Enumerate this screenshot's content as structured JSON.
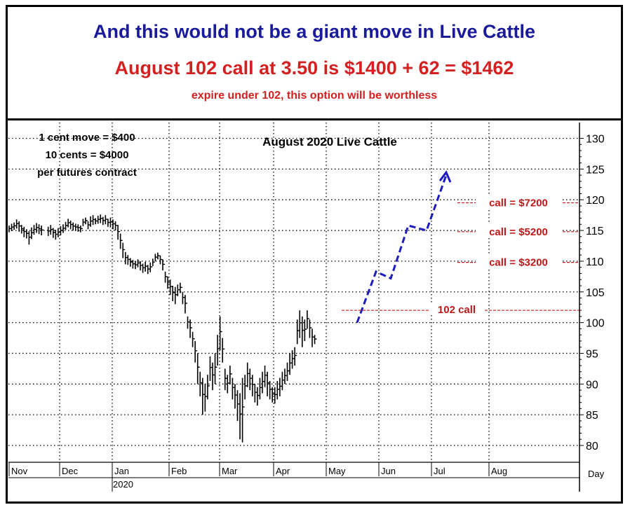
{
  "header": {
    "line1": "And this would not  be a giant move in Live Cattle",
    "line2": "August 102 call at 3.50 is $1400 + 62 = $1462",
    "line3": "expire under 102, this option will be worthless"
  },
  "colors": {
    "headline_blue": "#1a1a9c",
    "headline_red": "#d42020",
    "annotation_red": "#c01818",
    "projection_blue": "#1c1cc0",
    "bars": "#000000"
  },
  "notes": {
    "line1": "1 cent move = $400",
    "line2": "10 cents = $4000",
    "line3": "per futures contract"
  },
  "chart_data": {
    "type": "bar",
    "subtype": "ohlc",
    "title": "August 2020 Live Cattle",
    "xlabel": "Day",
    "x_ticks": [
      "Nov",
      "Dec",
      "Jan",
      "Feb",
      "Mar",
      "Apr",
      "May",
      "Jun",
      "Jul",
      "Aug"
    ],
    "x_sublabel": "2020",
    "y_ticks": [
      80,
      85,
      90,
      95,
      100,
      105,
      110,
      115,
      120,
      125,
      130
    ],
    "ylim": [
      78,
      132
    ],
    "grid": true,
    "y_axis_position": "right",
    "series": [
      {
        "values": [
          [
            115.8,
            114.7
          ],
          [
            116.1,
            114.9
          ],
          [
            116.3,
            115.1
          ],
          [
            116.8,
            115.3
          ],
          [
            116.5,
            114.8
          ],
          [
            115.9,
            114.5
          ],
          [
            115.6,
            113.9
          ],
          [
            115.2,
            113.7
          ],
          [
            114.9,
            112.7
          ],
          [
            115.5,
            113.6
          ],
          [
            115.9,
            114.3
          ],
          [
            116.2,
            114.6
          ],
          [
            116.0,
            114.4
          ],
          [
            115.8,
            114.2
          ],
          [
            115.6,
            114.1
          ],
          [
            115.9,
            114.3
          ],
          [
            115.4,
            113.8
          ],
          [
            115.1,
            113.5
          ],
          [
            115.4,
            113.9
          ],
          [
            115.7,
            114.2
          ],
          [
            116.0,
            114.6
          ],
          [
            116.4,
            115.1
          ],
          [
            116.9,
            115.5
          ],
          [
            116.6,
            115.2
          ],
          [
            116.3,
            115.0
          ],
          [
            116.1,
            114.9
          ],
          [
            116.0,
            114.8
          ],
          [
            115.8,
            114.7
          ],
          [
            116.9,
            115.7
          ],
          [
            117.1,
            116.0
          ],
          [
            116.5,
            115.2
          ],
          [
            117.3,
            115.6
          ],
          [
            117.5,
            115.9
          ],
          [
            117.0,
            116.0
          ],
          [
            117.4,
            116.1
          ],
          [
            117.6,
            116.2
          ],
          [
            117.2,
            115.9
          ],
          [
            117.5,
            116.0
          ],
          [
            116.9,
            115.6
          ],
          [
            117.1,
            115.5
          ],
          [
            116.8,
            115.2
          ],
          [
            116.5,
            115.0
          ],
          [
            115.9,
            113.5
          ],
          [
            114.5,
            112.0
          ],
          [
            113.0,
            110.5
          ],
          [
            111.5,
            109.5
          ],
          [
            111.0,
            109.4
          ],
          [
            110.5,
            109.1
          ],
          [
            110.2,
            108.8
          ],
          [
            110.0,
            108.7
          ],
          [
            110.3,
            109.0
          ],
          [
            110.0,
            108.5
          ],
          [
            109.6,
            108.1
          ],
          [
            109.9,
            108.3
          ],
          [
            109.4,
            107.9
          ],
          [
            109.8,
            108.2
          ],
          [
            110.4,
            109.2
          ],
          [
            111.2,
            110.0
          ],
          [
            111.4,
            110.3
          ],
          [
            110.9,
            109.5
          ],
          [
            110.3,
            108.5
          ],
          [
            108.3,
            106.5
          ],
          [
            107.5,
            105.5
          ],
          [
            107.0,
            104.5
          ],
          [
            106.0,
            103.5
          ],
          [
            105.8,
            103.0
          ],
          [
            106.2,
            104.3
          ],
          [
            106.5,
            104.8
          ],
          [
            105.0,
            103.0
          ],
          [
            104.5,
            101.5
          ],
          [
            101.0,
            99.0
          ],
          [
            100.5,
            97.5
          ],
          [
            98.5,
            96.0
          ],
          [
            97.0,
            93.5
          ],
          [
            95.0,
            90.0
          ],
          [
            92.0,
            88.0
          ],
          [
            91.0,
            85.0
          ],
          [
            90.0,
            85.5
          ],
          [
            91.5,
            87.5
          ],
          [
            94.5,
            90.5
          ],
          [
            93.5,
            89.0
          ],
          [
            95.0,
            90.0
          ],
          [
            98.0,
            93.0
          ],
          [
            101.0,
            95.5
          ],
          [
            97.5,
            93.5
          ],
          [
            92.5,
            89.0
          ],
          [
            91.5,
            88.5
          ],
          [
            93.0,
            90.0
          ],
          [
            91.0,
            87.5
          ],
          [
            90.0,
            86.0
          ],
          [
            89.0,
            84.0
          ],
          [
            88.5,
            81.0
          ],
          [
            91.0,
            80.5
          ],
          [
            91.5,
            87.5
          ],
          [
            93.5,
            89.5
          ],
          [
            92.5,
            89.0
          ],
          [
            91.5,
            88.0
          ],
          [
            90.0,
            87.0
          ],
          [
            89.5,
            86.5
          ],
          [
            91.0,
            87.5
          ],
          [
            92.0,
            88.5
          ],
          [
            93.0,
            89.5
          ],
          [
            92.0,
            88.0
          ],
          [
            90.5,
            87.5
          ],
          [
            89.5,
            87.0
          ],
          [
            89.5,
            86.8
          ],
          [
            90.5,
            87.5
          ],
          [
            91.0,
            88.0
          ],
          [
            92.0,
            89.0
          ],
          [
            92.5,
            90.0
          ],
          [
            93.5,
            90.5
          ],
          [
            95.0,
            91.5
          ],
          [
            95.5,
            92.5
          ],
          [
            96.0,
            93.0
          ],
          [
            100.5,
            96.5
          ],
          [
            102.0,
            97.5
          ],
          [
            101.0,
            96.0
          ],
          [
            100.5,
            97.0
          ],
          [
            102.0,
            99.0
          ],
          [
            100.5,
            97.5
          ],
          [
            99.0,
            96.0
          ],
          [
            98.0,
            96.5
          ]
        ]
      }
    ],
    "projection": {
      "style": "dashed-arrow",
      "points": [
        [
          "May",
          100.0
        ],
        [
          "Jun",
          108.3
        ],
        [
          "Jun",
          107.2
        ],
        [
          "Jun",
          115.8
        ],
        [
          "Jul",
          115.0
        ],
        [
          "Jul",
          124.0
        ]
      ]
    },
    "strike": {
      "value": 102,
      "label": "102 call"
    },
    "annotations": [
      {
        "label": "call = $7200",
        "y": 119.5
      },
      {
        "label": "call = $5200",
        "y": 114.8
      },
      {
        "label": "call = $3200",
        "y": 109.8
      }
    ]
  }
}
